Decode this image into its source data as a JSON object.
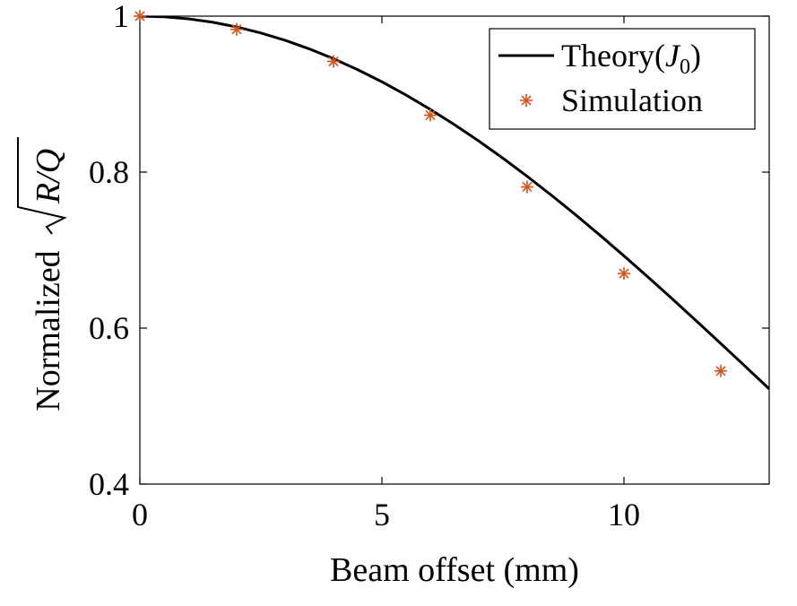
{
  "chart_data": {
    "type": "line",
    "xlabel": "Beam offset (mm)",
    "ylabel": "Normalized √R/Q",
    "xlim": [
      0,
      13
    ],
    "ylim": [
      0.4,
      1.0
    ],
    "xticks": [
      0,
      5,
      10
    ],
    "xtick_labels": [
      "0",
      "5",
      "10"
    ],
    "yticks": [
      0.4,
      0.6,
      0.8,
      1.0
    ],
    "ytick_labels": [
      "0.4",
      "0.6",
      "0.8",
      "1"
    ],
    "grid": false,
    "legend_position": "top-right",
    "series": [
      {
        "name": "Theory(J0)",
        "kind": "line",
        "color": "#000000",
        "x": [
          0,
          0.5,
          1,
          1.5,
          2,
          2.5,
          3,
          3.5,
          4,
          4.5,
          5,
          5.5,
          6,
          6.5,
          7,
          7.5,
          8,
          8.5,
          9,
          9.5,
          10,
          10.5,
          11,
          11.5,
          12,
          12.5,
          13
        ],
        "y": [
          1.0,
          0.9991,
          0.9965,
          0.9922,
          0.9861,
          0.9784,
          0.969,
          0.958,
          0.9454,
          0.9313,
          0.9158,
          0.8988,
          0.8804,
          0.8608,
          0.8399,
          0.8178,
          0.7946,
          0.7704,
          0.7453,
          0.7193,
          0.6926,
          0.6652,
          0.6373,
          0.6089,
          0.5802,
          0.5512,
          0.522
        ]
      },
      {
        "name": "Simulation",
        "kind": "scatter",
        "marker": "asterisk",
        "color": "#D95319",
        "x": [
          0,
          2,
          4,
          6,
          8,
          10,
          12
        ],
        "y": [
          1.0,
          0.983,
          0.942,
          0.873,
          0.781,
          0.67,
          0.545
        ]
      }
    ],
    "legend_entries": [
      {
        "label_main": "Theory",
        "label_paren_open": "(",
        "label_symbol": "J",
        "label_sub": "0",
        "label_paren_close": ")"
      },
      {
        "label_main": "Simulation"
      }
    ],
    "ylabel_parts": {
      "word": "Normalized",
      "symbol": "R/Q"
    }
  }
}
